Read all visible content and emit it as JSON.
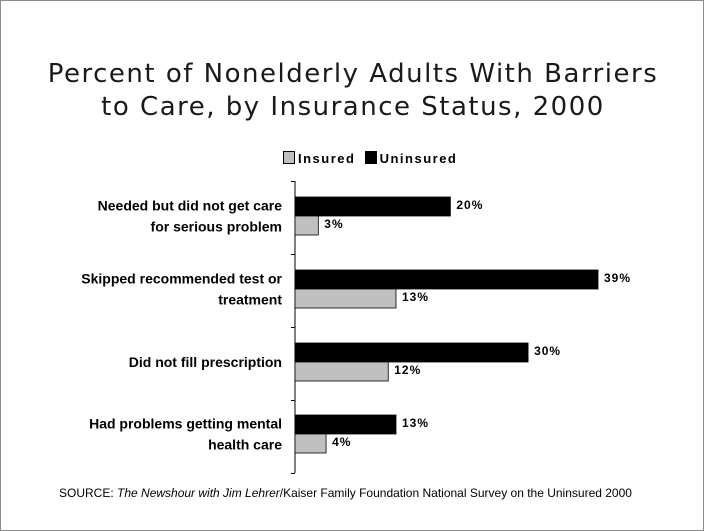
{
  "title_line1": "Percent of Nonelderly Adults With Barriers",
  "title_line2": "to Care, by Insurance Status, 2000",
  "source": {
    "prefix": "SOURCE: ",
    "italic": "The Newshour with Jim Lehrer",
    "rest": "/Kaiser Family Foundation National Survey on the Uninsured 2000"
  },
  "chart_data": {
    "type": "bar",
    "orientation": "horizontal",
    "legend_position": "top",
    "categories": [
      [
        "Needed but did not get care",
        "for serious problem"
      ],
      [
        "Skipped recommended test or",
        "treatment"
      ],
      [
        "Did not fill prescription"
      ],
      [
        "Had problems getting mental",
        "health care"
      ]
    ],
    "series": [
      {
        "name": "Insured",
        "color": "#c0c0c0",
        "values": [
          3,
          13,
          12,
          4
        ],
        "labels": [
          "3%",
          "13%",
          "12%",
          "4%"
        ]
      },
      {
        "name": "Uninsured",
        "color": "#000000",
        "values": [
          20,
          39,
          30,
          13
        ],
        "labels": [
          "20%",
          "39%",
          "30%",
          "13%"
        ]
      }
    ],
    "xlim": [
      0,
      40
    ],
    "grid": false
  }
}
